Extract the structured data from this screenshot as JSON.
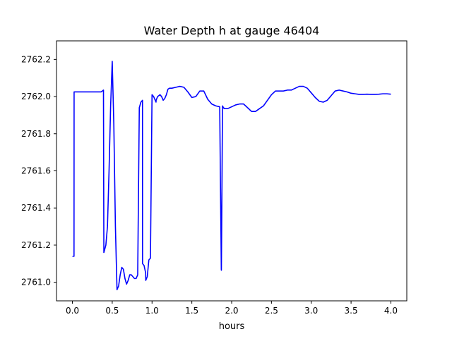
{
  "chart_data": {
    "type": "line",
    "title": "Water Depth h at gauge 46404",
    "xlabel": "hours",
    "ylabel": "",
    "xlim": [
      -0.2,
      4.2
    ],
    "ylim": [
      2760.9,
      2762.3
    ],
    "xticks": [
      0.0,
      0.5,
      1.0,
      1.5,
      2.0,
      2.5,
      3.0,
      3.5,
      4.0
    ],
    "xtick_labels": [
      "0.0",
      "0.5",
      "1.0",
      "1.5",
      "2.0",
      "2.5",
      "3.0",
      "3.5",
      "4.0"
    ],
    "yticks": [
      2761.0,
      2761.2,
      2761.4,
      2761.6,
      2761.8,
      2762.0,
      2762.2
    ],
    "ytick_labels": [
      "2761.0",
      "2761.2",
      "2761.4",
      "2761.6",
      "2761.8",
      "2762.0",
      "2762.2"
    ],
    "grid": false,
    "series": [
      {
        "color": "#0000ff",
        "x": [
          0.0,
          0.02,
          0.021,
          0.05,
          0.1,
          0.2,
          0.3,
          0.36,
          0.39,
          0.395,
          0.42,
          0.44,
          0.46,
          0.48,
          0.5,
          0.52,
          0.54,
          0.56,
          0.58,
          0.6,
          0.62,
          0.64,
          0.66,
          0.68,
          0.7,
          0.72,
          0.74,
          0.76,
          0.78,
          0.8,
          0.82,
          0.84,
          0.86,
          0.88,
          0.881,
          0.9,
          0.92,
          0.921,
          0.94,
          0.96,
          0.98,
          1.0,
          1.02,
          1.05,
          1.051,
          1.07,
          1.1,
          1.12,
          1.14,
          1.16,
          1.18,
          1.2,
          1.22,
          1.25,
          1.3,
          1.35,
          1.4,
          1.45,
          1.5,
          1.55,
          1.6,
          1.65,
          1.7,
          1.75,
          1.8,
          1.85,
          1.87,
          1.871,
          1.885,
          1.89,
          1.9,
          1.905,
          1.95,
          2.0,
          2.05,
          2.1,
          2.15,
          2.2,
          2.25,
          2.3,
          2.35,
          2.4,
          2.45,
          2.5,
          2.55,
          2.6,
          2.65,
          2.7,
          2.75,
          2.8,
          2.85,
          2.9,
          2.95,
          3.0,
          3.05,
          3.1,
          3.15,
          3.2,
          3.25,
          3.3,
          3.35,
          3.4,
          3.45,
          3.5,
          3.55,
          3.6,
          3.65,
          3.7,
          3.75,
          3.8,
          3.85,
          3.9,
          3.95,
          4.0
        ],
        "y": [
          2761.14,
          2761.14,
          2762.025,
          2762.025,
          2762.025,
          2762.025,
          2762.025,
          2762.025,
          2762.035,
          2761.16,
          2761.2,
          2761.3,
          2761.6,
          2761.95,
          2762.19,
          2761.85,
          2761.3,
          2760.96,
          2760.98,
          2761.04,
          2761.08,
          2761.07,
          2761.02,
          2760.99,
          2761.01,
          2761.04,
          2761.04,
          2761.03,
          2761.02,
          2761.02,
          2761.04,
          2761.94,
          2761.97,
          2761.98,
          2761.1,
          2761.09,
          2761.05,
          2761.01,
          2761.03,
          2761.12,
          2761.13,
          2762.01,
          2762.0,
          2761.97,
          2761.98,
          2762.0,
          2762.01,
          2762.0,
          2761.98,
          2761.99,
          2762.01,
          2762.04,
          2762.045,
          2762.045,
          2762.05,
          2762.055,
          2762.05,
          2762.025,
          2761.995,
          2762.0,
          2762.03,
          2762.03,
          2761.985,
          2761.96,
          2761.95,
          2761.945,
          2761.07,
          2761.065,
          2761.95,
          2761.945,
          2761.94,
          2761.935,
          2761.935,
          2761.945,
          2761.955,
          2761.96,
          2761.96,
          2761.94,
          2761.92,
          2761.92,
          2761.935,
          2761.95,
          2761.98,
          2762.01,
          2762.03,
          2762.03,
          2762.03,
          2762.035,
          2762.035,
          2762.045,
          2762.055,
          2762.055,
          2762.045,
          2762.02,
          2761.995,
          2761.975,
          2761.97,
          2761.98,
          2762.005,
          2762.03,
          2762.035,
          2762.03,
          2762.025,
          2762.018,
          2762.015,
          2762.012,
          2762.012,
          2762.013,
          2762.012,
          2762.012,
          2762.013,
          2762.015,
          2762.015,
          2762.013
        ]
      }
    ]
  }
}
